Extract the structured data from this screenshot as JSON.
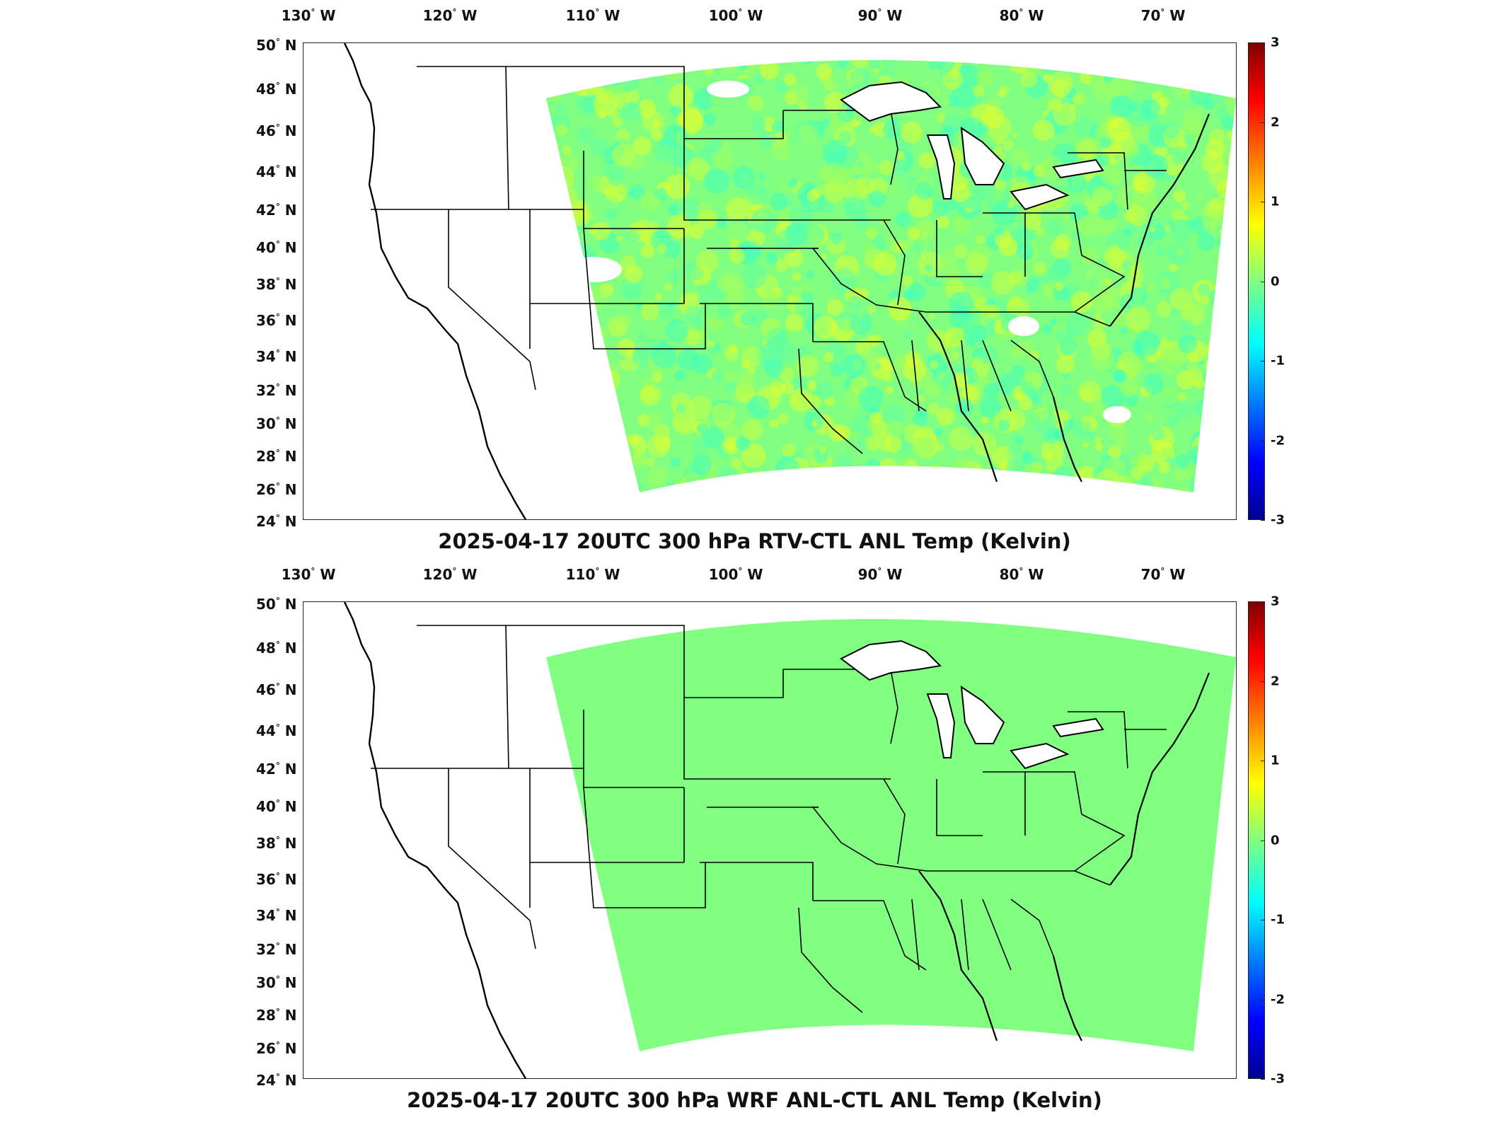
{
  "panels": [
    {
      "title": "2025-04-17 20UTC 300 hPa RTV-CTL ANL Temp (Kelvin)",
      "field_style": "noisy-diff"
    },
    {
      "title": "2025-04-17 20UTC 300 hPa WRF ANL-CTL ANL Temp (Kelvin)",
      "field_style": "uniform-zero"
    }
  ],
  "lon_labels": [
    "130",
    "120",
    "110",
    "100",
    "90",
    "80",
    "70"
  ],
  "lon_suffix": "W",
  "lat_labels": [
    "50",
    "48",
    "46",
    "44",
    "42",
    "40",
    "38",
    "36",
    "34",
    "32",
    "30",
    "28",
    "26",
    "24"
  ],
  "lat_suffix": "N",
  "colorbar": {
    "ticks": [
      "3",
      "2",
      "1",
      "0",
      "-1",
      "-2",
      "-3"
    ],
    "range": [
      -3,
      3
    ],
    "colormap": "jet"
  },
  "colors": {
    "zero": "#80ff80",
    "slight_positive": "#c8ff40",
    "slight_negative": "#40ffc0"
  }
}
